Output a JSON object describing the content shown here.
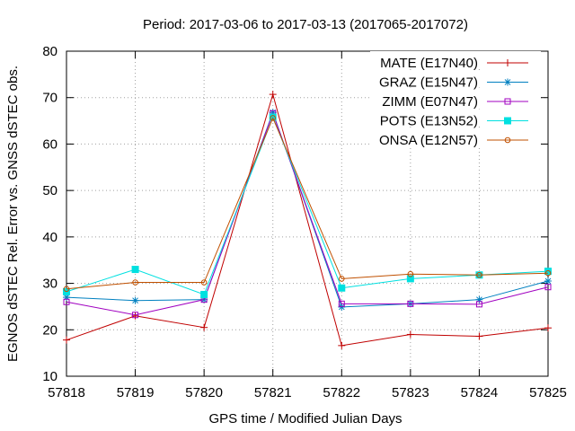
{
  "chart_data": {
    "type": "line",
    "title": "Period: 2017-03-06 to 2017-03-13 (2017065-2017072)",
    "xlabel": "GPS time / Modified Julian Days",
    "ylabel": "EGNOS dSTEC Rel. Error vs. GNSS dSTEC obs.",
    "x": [
      57818,
      57819,
      57820,
      57821,
      57822,
      57823,
      57824,
      57825
    ],
    "xlim": [
      57818,
      57825
    ],
    "ylim": [
      10,
      80
    ],
    "xticks": [
      "57818",
      "57819",
      "57820",
      "57821",
      "57822",
      "57823",
      "57824",
      "57825"
    ],
    "yticks": [
      "10",
      "20",
      "30",
      "40",
      "50",
      "60",
      "70",
      "80"
    ],
    "grid": true,
    "legend_position": "top-right",
    "series": [
      {
        "name": "MATE (E17N40)",
        "color": "#c00000",
        "marker": "plus",
        "values": [
          17.8,
          23.0,
          20.5,
          70.7,
          16.6,
          19.0,
          18.6,
          20.4
        ]
      },
      {
        "name": "GRAZ (E15N47)",
        "color": "#0080c0",
        "marker": "star",
        "values": [
          27.0,
          26.3,
          26.5,
          66.8,
          24.9,
          25.6,
          26.5,
          30.5
        ]
      },
      {
        "name": "ZIMM (E07N47)",
        "color": "#a000c0",
        "marker": "square-open",
        "values": [
          26.0,
          23.2,
          26.5,
          66.6,
          25.6,
          25.6,
          25.5,
          29.2
        ]
      },
      {
        "name": "POTS (E13N52)",
        "color": "#00e0e0",
        "marker": "square-filled",
        "values": [
          28.2,
          33.0,
          27.6,
          65.8,
          29.0,
          31.0,
          31.8,
          32.6
        ]
      },
      {
        "name": "ONSA (E12N57)",
        "color": "#c05000",
        "marker": "circle-open",
        "values": [
          28.8,
          30.2,
          30.2,
          65.6,
          31.0,
          32.0,
          31.8,
          32.2
        ]
      }
    ]
  }
}
